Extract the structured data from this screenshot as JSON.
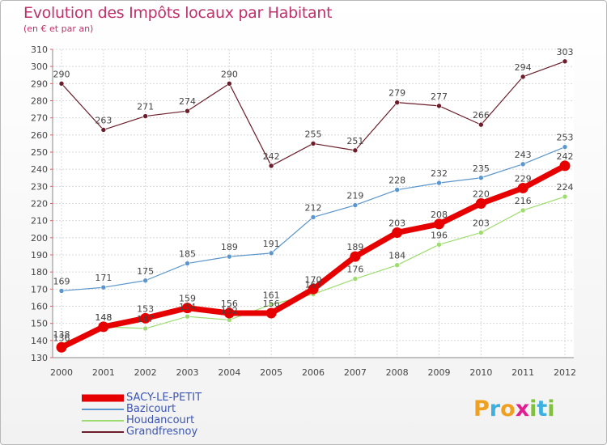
{
  "chart_data": {
    "type": "line",
    "title": "Evolution des Impôts locaux par Habitant",
    "subtitle": "(en € et par an)",
    "xlabel": "",
    "ylabel": "",
    "ylim": [
      130,
      310
    ],
    "yticks": [
      130,
      140,
      150,
      160,
      170,
      180,
      190,
      200,
      210,
      220,
      230,
      240,
      250,
      260,
      270,
      280,
      290,
      300,
      310
    ],
    "categories": [
      "2000",
      "2001",
      "2002",
      "2003",
      "2004",
      "2005",
      "2006",
      "2007",
      "2008",
      "2009",
      "2010",
      "2011",
      "2012"
    ],
    "grid": true,
    "legend_position": "bottom-left",
    "series": [
      {
        "name": "Grandfresnoy",
        "color": "#6b1e2a",
        "values": [
          290,
          263,
          271,
          274,
          290,
          242,
          255,
          251,
          279,
          277,
          266,
          294,
          303
        ]
      },
      {
        "name": "Bazicourt",
        "color": "#5b96cc",
        "values": [
          169,
          171,
          175,
          185,
          189,
          191,
          212,
          219,
          228,
          232,
          235,
          243,
          253
        ]
      },
      {
        "name": "Houdancourt",
        "color": "#9ddc6e",
        "values": [
          138,
          148,
          147,
          154,
          152,
          161,
          167,
          176,
          184,
          196,
          203,
          216,
          224
        ]
      },
      {
        "name": "SACY-LE-PETIT",
        "color": "#e60000",
        "values": [
          136,
          148,
          153,
          159,
          156,
          156,
          170,
          189,
          203,
          208,
          220,
          229,
          242
        ]
      }
    ],
    "data_labels": {
      "Grandfresnoy": [
        "290",
        "263",
        "271",
        "274",
        "290",
        "242",
        "255",
        "251",
        "279",
        "277",
        "266",
        "294",
        "303"
      ],
      "Bazicourt": [
        "169",
        "171",
        "175",
        "185",
        "189",
        "191",
        "212",
        "219",
        "228",
        "232",
        "235",
        "243",
        "253"
      ],
      "Houdancourt": [
        "138",
        "148",
        "147",
        "154",
        "152",
        "161",
        "167",
        "176",
        "184",
        "196",
        "203",
        "216",
        "224"
      ],
      "SACY-LE-PETIT": [
        "136",
        "148",
        "153",
        "159",
        "156",
        "156",
        "170",
        "189",
        "203",
        "208",
        "220",
        "229",
        "242"
      ]
    }
  },
  "legend": {
    "items": [
      {
        "label": "SACY-LE-PETIT",
        "color": "#e60000"
      },
      {
        "label": "Bazicourt",
        "color": "#5b96cc"
      },
      {
        "label": "Houdancourt",
        "color": "#9ddc6e"
      },
      {
        "label": "Grandfresnoy",
        "color": "#6b1e2a"
      }
    ]
  },
  "brand": {
    "letters": [
      "P",
      "r",
      "o",
      "x",
      "i",
      "t",
      "i"
    ],
    "colors": [
      "#f0a020",
      "#3cb0e0",
      "#f0a020",
      "#e02090",
      "#80c040",
      "#3cb0e0",
      "#80c040"
    ]
  }
}
